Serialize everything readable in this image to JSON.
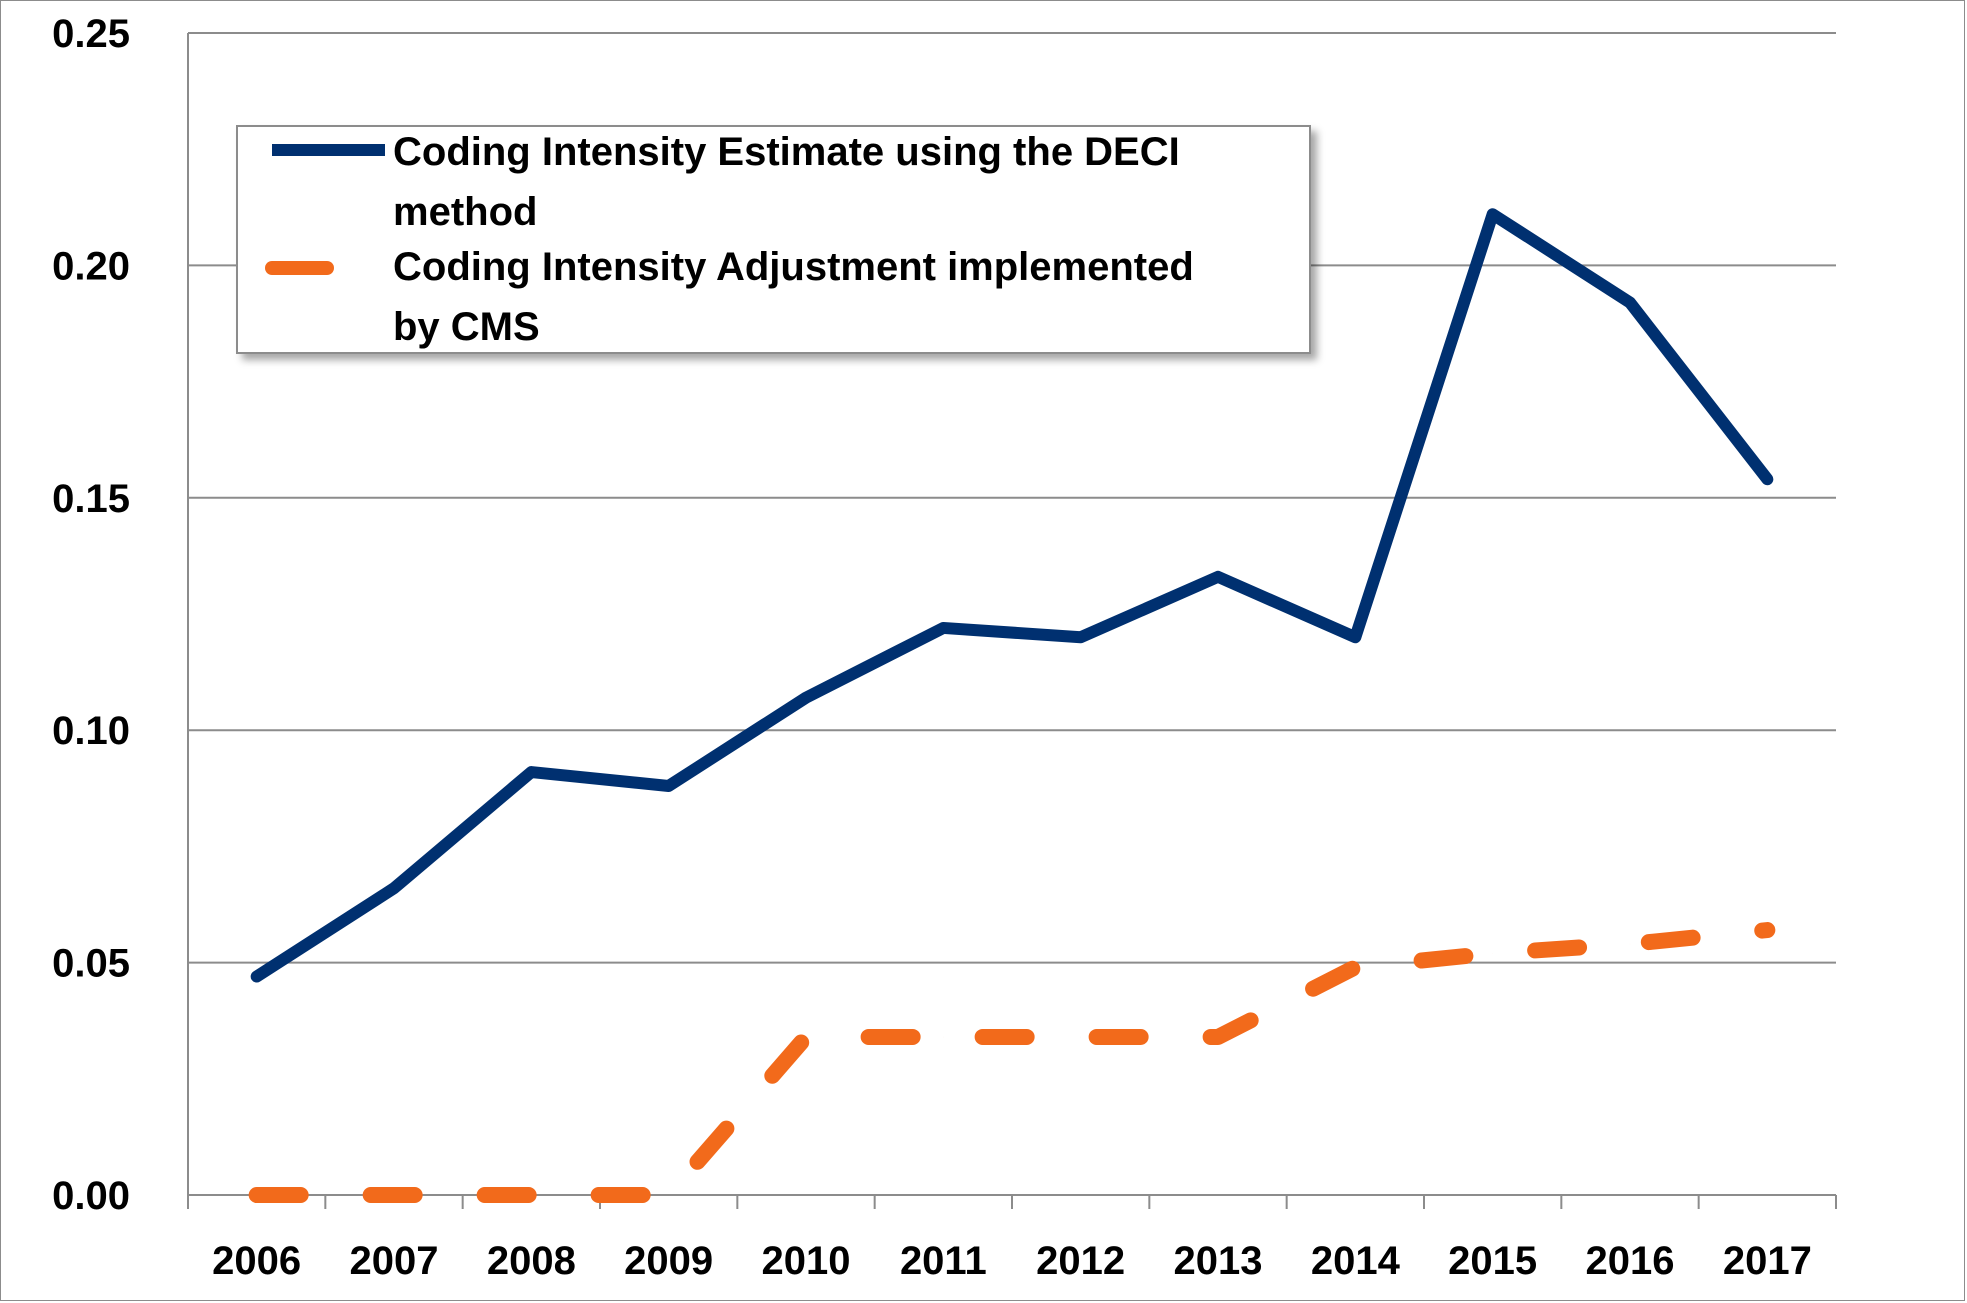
{
  "chart_data": {
    "type": "line",
    "title": "",
    "xlabel": "",
    "ylabel": "",
    "categories": [
      "2006",
      "2007",
      "2008",
      "2009",
      "2010",
      "2011",
      "2012",
      "2013",
      "2014",
      "2015",
      "2016",
      "2017"
    ],
    "ylim": [
      0,
      0.25
    ],
    "yticks": [
      "0.00",
      "0.05",
      "0.10",
      "0.15",
      "0.20",
      "0.25"
    ],
    "grid": true,
    "legend_position": "top-left",
    "series": [
      {
        "name": "Coding Intensity Estimate using the DECI method",
        "name_lines": [
          "Coding Intensity Estimate using the DECI",
          "method"
        ],
        "color": "#003070",
        "style": "solid",
        "values": [
          0.047,
          0.066,
          0.091,
          0.088,
          0.107,
          0.122,
          0.12,
          0.133,
          0.12,
          0.211,
          0.192,
          0.154
        ]
      },
      {
        "name": "Coding Intensity Adjustment implemented by CMS",
        "name_lines": [
          "Coding Intensity Adjustment implemented",
          "by CMS"
        ],
        "color": "#f26a1b",
        "style": "dashed",
        "values": [
          0.0,
          0.0,
          0.0,
          0.0,
          0.034,
          0.034,
          0.034,
          0.034,
          0.049,
          0.052,
          0.054,
          0.057
        ]
      }
    ]
  }
}
